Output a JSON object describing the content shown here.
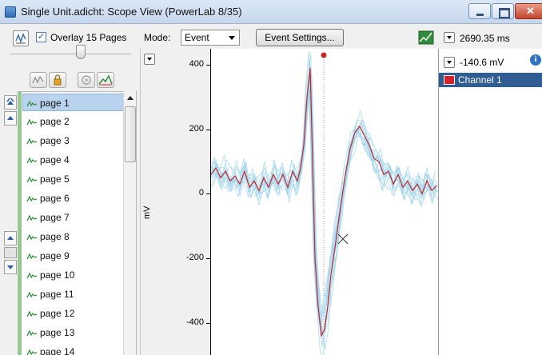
{
  "window": {
    "title": "Single Unit.adicht: Scope View (PowerLab 8/35)",
    "controls": [
      "minimize",
      "maximize",
      "close"
    ]
  },
  "toolbar": {
    "overlay_checked": true,
    "overlay_label": "Overlay 15 Pages",
    "mode_label": "Mode:",
    "mode_value": "Event",
    "event_settings_label": "Event Settings...",
    "time_readout": "2690.35 ms"
  },
  "pages": {
    "selected_index": 0,
    "items": [
      "page 1",
      "page 2",
      "page 3",
      "page 4",
      "page 5",
      "page 6",
      "page 7",
      "page 8",
      "page 9",
      "page 10",
      "page 11",
      "page 12",
      "page 13",
      "page 14"
    ]
  },
  "channel": {
    "value_readout": "-140.6 mV",
    "name": "Channel 1",
    "color": "#d7222b"
  },
  "colors": {
    "overlay_trace": "#9fd3ec",
    "average_trace": "#c0282d",
    "selection": "#2f5c93"
  },
  "chart_data": {
    "type": "line",
    "ylabel": "mV",
    "yticks": [
      400,
      200,
      0,
      -200,
      -400
    ],
    "ylim": [
      -500,
      450
    ],
    "series": [
      {
        "role": "average",
        "points": [
          [
            0,
            60
          ],
          [
            6,
            80
          ],
          [
            12,
            50
          ],
          [
            18,
            70
          ],
          [
            24,
            40
          ],
          [
            30,
            55
          ],
          [
            36,
            30
          ],
          [
            42,
            70
          ],
          [
            48,
            20
          ],
          [
            54,
            40
          ],
          [
            60,
            10
          ],
          [
            66,
            50
          ],
          [
            72,
            20
          ],
          [
            78,
            60
          ],
          [
            84,
            30
          ],
          [
            90,
            60
          ],
          [
            96,
            20
          ],
          [
            102,
            70
          ],
          [
            108,
            40
          ],
          [
            112,
            80
          ],
          [
            116,
            150
          ],
          [
            120,
            300
          ],
          [
            124,
            390
          ],
          [
            126,
            200
          ],
          [
            130,
            -200
          ],
          [
            134,
            -350
          ],
          [
            138,
            -440
          ],
          [
            142,
            -420
          ],
          [
            146,
            -350
          ],
          [
            150,
            -250
          ],
          [
            156,
            -150
          ],
          [
            162,
            -40
          ],
          [
            168,
            60
          ],
          [
            174,
            140
          ],
          [
            180,
            190
          ],
          [
            186,
            210
          ],
          [
            192,
            180
          ],
          [
            198,
            150
          ],
          [
            204,
            110
          ],
          [
            210,
            100
          ],
          [
            216,
            60
          ],
          [
            222,
            70
          ],
          [
            228,
            30
          ],
          [
            234,
            60
          ],
          [
            240,
            20
          ],
          [
            246,
            40
          ],
          [
            252,
            10
          ],
          [
            258,
            30
          ],
          [
            264,
            0
          ],
          [
            270,
            40
          ],
          [
            276,
            10
          ],
          [
            282,
            25
          ]
        ]
      }
    ]
  }
}
